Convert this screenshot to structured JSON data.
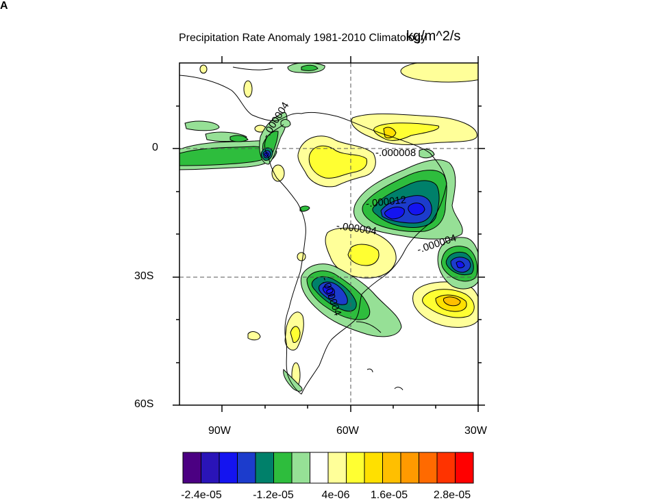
{
  "panel_letter": "A",
  "title": "Precipitation Rate Anomaly 1981-2010 Climatology",
  "units": "kg/m^2/s",
  "axes": {
    "lat_ticks": [
      {
        "label": "0",
        "value": 0
      },
      {
        "label": "30S",
        "value": -30
      },
      {
        "label": "60S",
        "value": -60
      }
    ],
    "lon_ticks": [
      {
        "label": "90W",
        "value": -90
      },
      {
        "label": "60W",
        "value": -60
      },
      {
        "label": "30W",
        "value": -30
      }
    ],
    "lon_range": [
      -100,
      -30
    ],
    "lat_range": [
      -60,
      20
    ],
    "grid": "dashed lines at 0, 30S and 60W"
  },
  "contour_labels": [
    {
      "text": "-.000004",
      "lon": -79,
      "lat": 5
    },
    {
      "text": "-.000008",
      "lon": -51,
      "lat": -1
    },
    {
      "text": "-.000012",
      "lon": -53,
      "lat": -12
    },
    {
      "text": "-.000004",
      "lon": -55,
      "lat": -20
    },
    {
      "text": "-.000004",
      "lon": -38,
      "lat": -21
    },
    {
      "text": "-.000004",
      "lon": -69,
      "lat": -34
    }
  ],
  "colorbar": {
    "colors": [
      "#4b0082",
      "#2a14b8",
      "#1414f0",
      "#1c3ccc",
      "#00806a",
      "#2ebd3d",
      "#96e096",
      "#ffffff",
      "#ffff99",
      "#ffff32",
      "#ffe000",
      "#ffbf00",
      "#ff9a00",
      "#ff6a00",
      "#ff3300",
      "#ff0000"
    ],
    "labels": [
      "-2.4e-05",
      "-1.2e-05",
      "4e-06",
      "1.6e-05",
      "2.8e-05"
    ]
  }
}
